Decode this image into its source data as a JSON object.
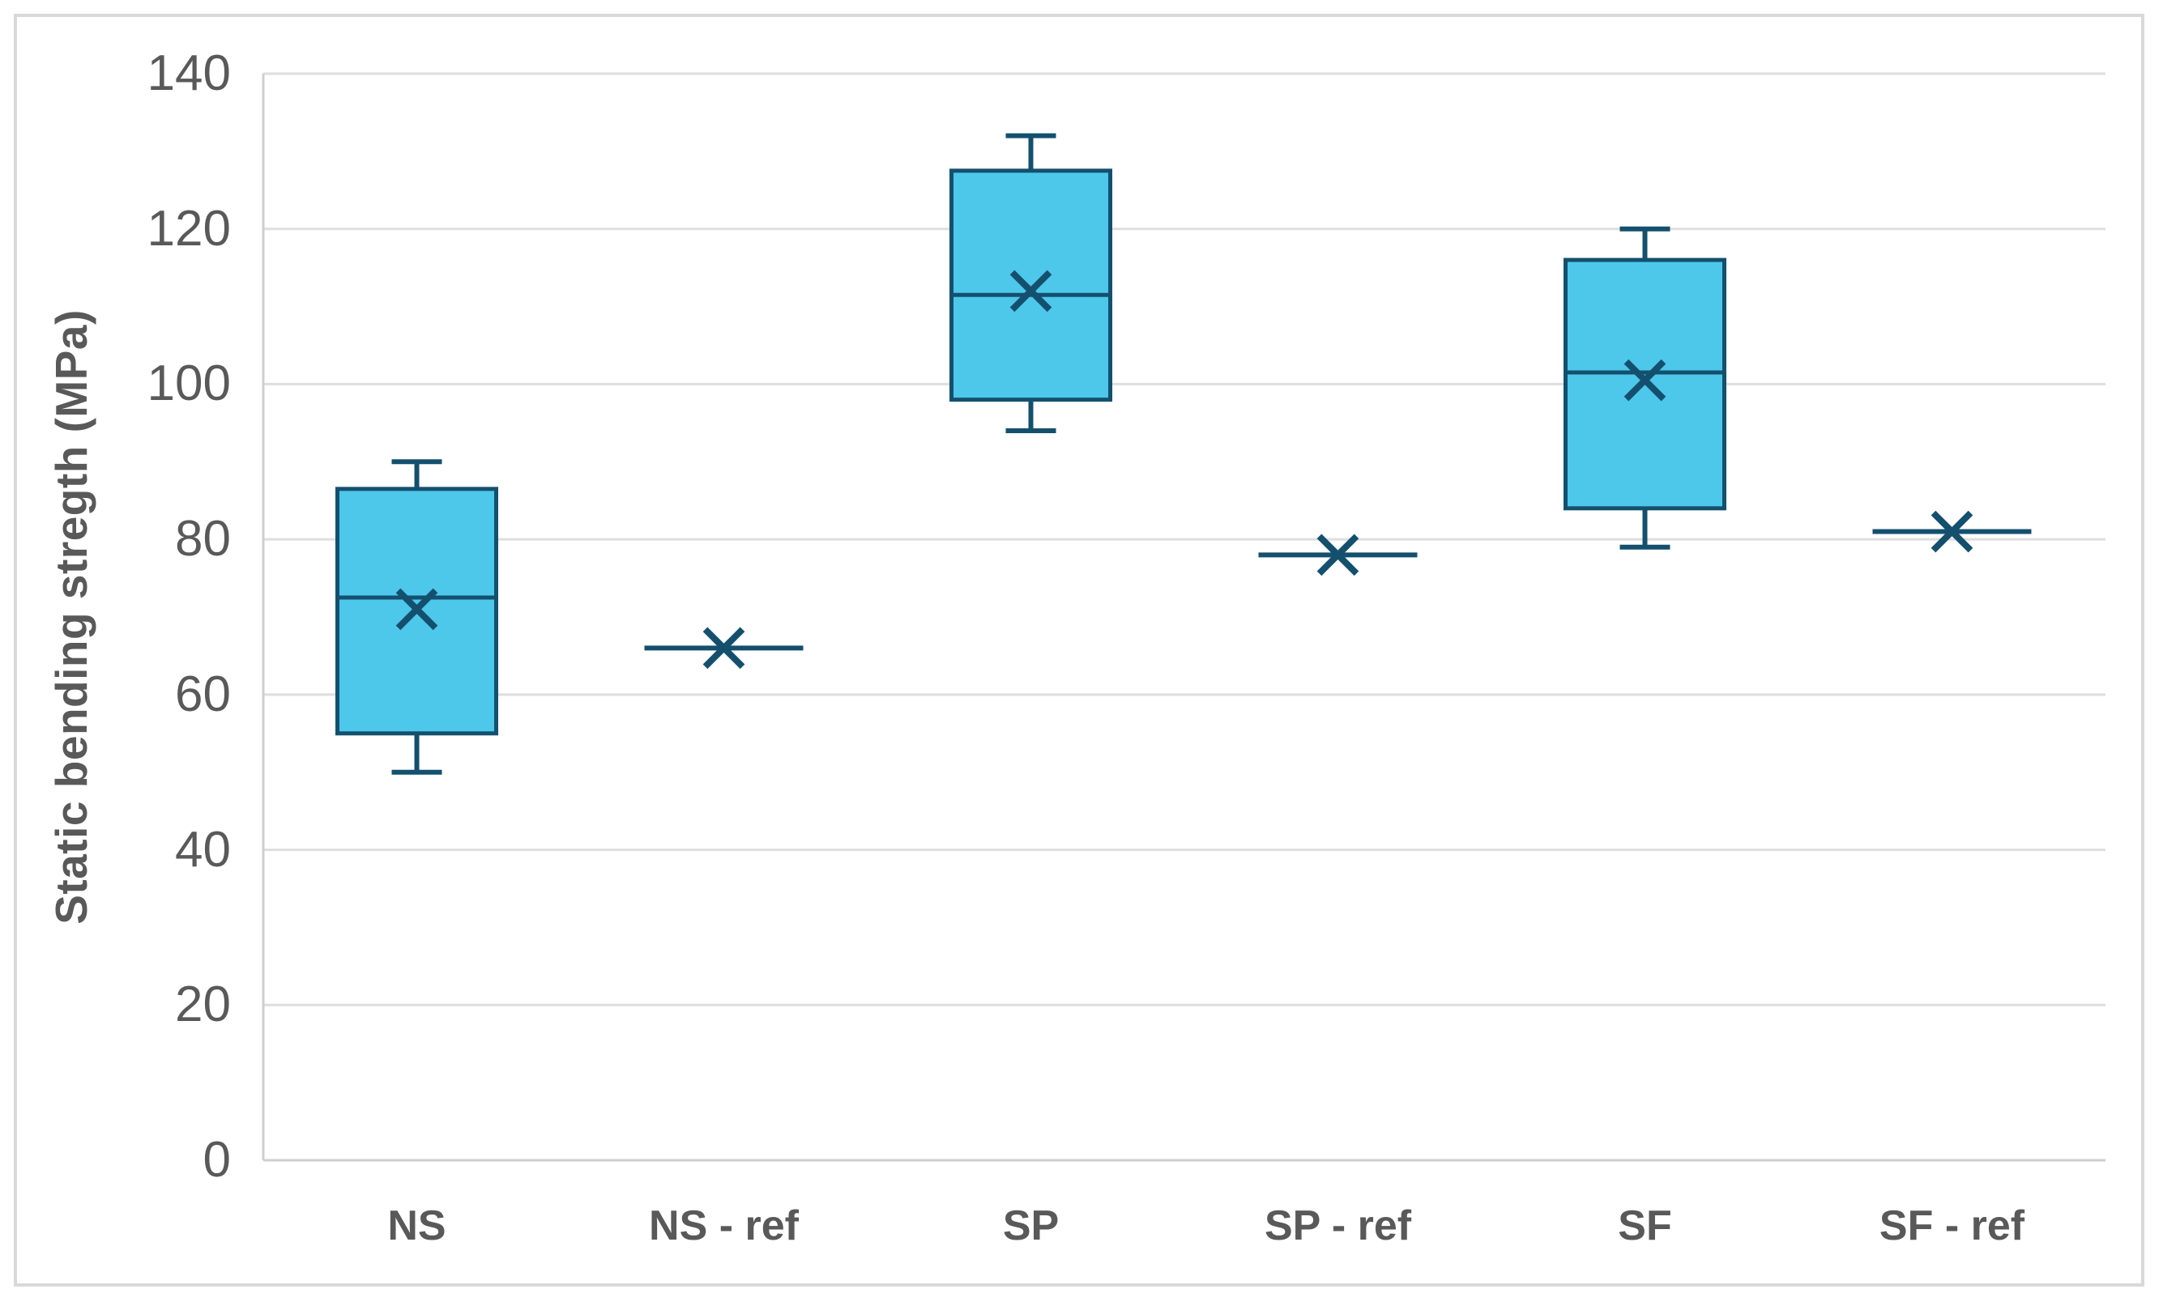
{
  "chart_data": {
    "type": "boxplot",
    "title": "",
    "ylabel": "Static bending stregth (MPa)",
    "xlabel": "",
    "ylim": [
      0,
      140
    ],
    "ytick_step": 20,
    "yticks": [
      0,
      20,
      40,
      60,
      80,
      100,
      120,
      140
    ],
    "grid": true,
    "legend_position": "none",
    "categories": [
      "NS",
      "NS - ref",
      "SP",
      "SP - ref",
      "SF",
      "SF - ref"
    ],
    "series": [
      {
        "name": "NS",
        "min": 50,
        "q1": 55,
        "median": 72.5,
        "q3": 86.5,
        "max": 90,
        "mean": 71
      },
      {
        "name": "NS - ref",
        "min": 66,
        "q1": 66,
        "median": 66,
        "q3": 66,
        "max": 66,
        "mean": 66
      },
      {
        "name": "SP",
        "min": 94,
        "q1": 98,
        "median": 111.5,
        "q3": 127.5,
        "max": 132,
        "mean": 112
      },
      {
        "name": "SP - ref",
        "min": 78,
        "q1": 78,
        "median": 78,
        "q3": 78,
        "max": 78,
        "mean": 78
      },
      {
        "name": "SF",
        "min": 79,
        "q1": 84,
        "median": 101.5,
        "q3": 116,
        "max": 120,
        "mean": 100.5
      },
      {
        "name": "SF - ref",
        "min": 81,
        "q1": 81,
        "median": 81,
        "q3": 81,
        "max": 81,
        "mean": 81
      }
    ]
  },
  "colors": {
    "box_fill": "#4dc8eb",
    "box_stroke": "#14506e",
    "mean_marker": "#14506e",
    "gridline": "#dedede",
    "axis_line": "#cfcfcf",
    "frame_border": "#d9d9d9",
    "text": "#595959",
    "background": "#ffffff"
  }
}
